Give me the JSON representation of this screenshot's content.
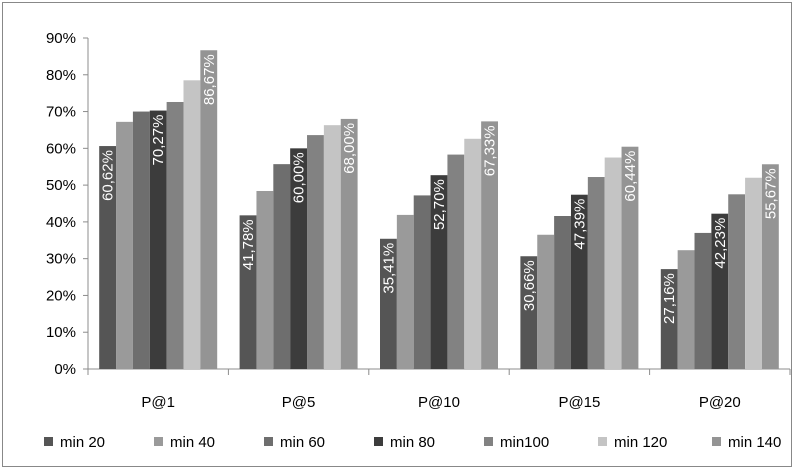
{
  "chart_data": {
    "type": "bar",
    "title": "",
    "xlabel": "",
    "ylabel": "",
    "ylim": [
      0,
      90
    ],
    "y_ticks": [
      "0%",
      "10%",
      "20%",
      "30%",
      "40%",
      "50%",
      "60%",
      "70%",
      "80%",
      "90%"
    ],
    "grid": false,
    "legend_position": "bottom",
    "categories": [
      "P@1",
      "P@5",
      "P@10",
      "P@15",
      "P@20"
    ],
    "series": [
      {
        "name": "min 20",
        "color": "#555555",
        "values": [
          60.62,
          41.78,
          35.41,
          30.66,
          27.16
        ],
        "labels": [
          "60,62%",
          "41,78%",
          "35,41%",
          "30,66%",
          "27,16%"
        ]
      },
      {
        "name": "min 40",
        "color": "#9a9a9a",
        "values": [
          67.2,
          48.4,
          41.9,
          36.5,
          32.3
        ],
        "labels": [
          null,
          null,
          null,
          null,
          null
        ]
      },
      {
        "name": "min 60",
        "color": "#6e6e6e",
        "values": [
          70.0,
          55.7,
          47.2,
          41.6,
          37.0
        ],
        "labels": [
          null,
          null,
          null,
          null,
          null
        ]
      },
      {
        "name": "min 80",
        "color": "#3c3c3c",
        "values": [
          70.27,
          60.0,
          52.7,
          47.39,
          42.23
        ],
        "labels": [
          "70,27%",
          "60,00%",
          "52,70%",
          "47,39%",
          "42,23%"
        ]
      },
      {
        "name": "min100",
        "color": "#828282",
        "values": [
          72.6,
          63.6,
          58.3,
          52.2,
          47.5
        ],
        "labels": [
          null,
          null,
          null,
          null,
          null
        ]
      },
      {
        "name": "min 120",
        "color": "#c4c4c4",
        "values": [
          78.5,
          66.3,
          62.6,
          57.5,
          52.0
        ],
        "labels": [
          null,
          null,
          null,
          null,
          null
        ]
      },
      {
        "name": "min 140",
        "color": "#949494",
        "values": [
          86.67,
          68.0,
          67.33,
          60.44,
          55.67
        ],
        "labels": [
          "86,67%",
          "68,00%",
          "67,33%",
          "60,44%",
          "55,67%"
        ]
      }
    ]
  }
}
